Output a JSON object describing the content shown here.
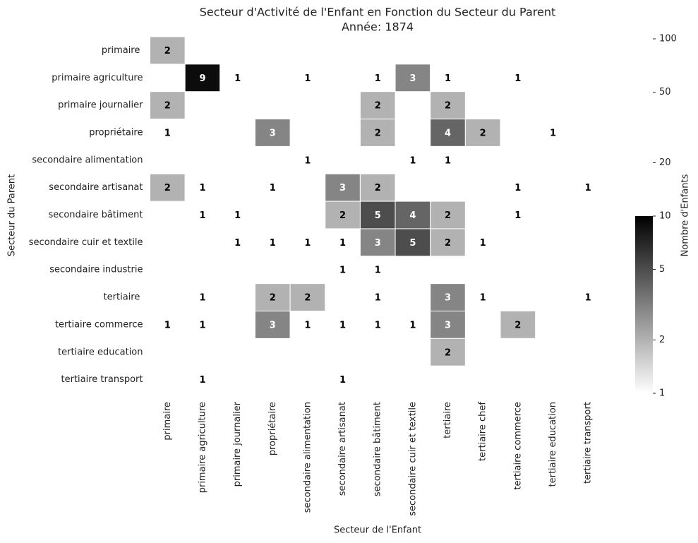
{
  "chart_data": {
    "type": "heatmap",
    "title": "Secteur d'Activité de l'Enfant en Fonction du Secteur du Parent",
    "subtitle": "Année: 1874",
    "x_label": "Secteur de l'Enfant",
    "y_label": "Secteur du Parent",
    "colorbar_label": "Nombre d'Enfants",
    "colormap": "gray_r",
    "log_scale": true,
    "color_range": [
      1,
      10
    ],
    "clim": [
      1,
      100
    ],
    "cticks": [
      1,
      2,
      5,
      10,
      20,
      50,
      100
    ],
    "columns": [
      "primaire",
      "primaire agriculture",
      "primaire journalier",
      "propriétaire",
      "secondaire alimentation",
      "secondaire artisanat",
      "secondaire bâtiment",
      "secondaire cuir et textile",
      "tertiaire",
      "tertiaire chef",
      "tertiaire commerce",
      "tertiaire education",
      "tertiaire transport"
    ],
    "rows": [
      "primaire ",
      "primaire agriculture",
      "primaire journalier",
      "propriétaire",
      "secondaire alimentation",
      "secondaire artisanat",
      "secondaire bâtiment",
      "secondaire cuir et textile",
      "secondaire industrie",
      "tertiaire ",
      "tertiaire commerce",
      "tertiaire education",
      "tertiaire transport"
    ],
    "values": [
      [
        2,
        null,
        null,
        null,
        null,
        null,
        null,
        null,
        null,
        null,
        null,
        null,
        null
      ],
      [
        null,
        9,
        1,
        null,
        1,
        null,
        1,
        3,
        1,
        null,
        1,
        null,
        null
      ],
      [
        2,
        null,
        null,
        null,
        null,
        null,
        2,
        null,
        2,
        null,
        null,
        null,
        null
      ],
      [
        1,
        null,
        null,
        3,
        null,
        null,
        2,
        null,
        4,
        2,
        null,
        1,
        null
      ],
      [
        null,
        null,
        null,
        null,
        1,
        null,
        null,
        1,
        1,
        null,
        null,
        null,
        null
      ],
      [
        2,
        1,
        null,
        1,
        null,
        3,
        2,
        null,
        null,
        null,
        1,
        null,
        1
      ],
      [
        null,
        1,
        1,
        null,
        null,
        2,
        5,
        4,
        2,
        null,
        1,
        null,
        null
      ],
      [
        null,
        null,
        1,
        1,
        1,
        1,
        3,
        5,
        2,
        1,
        null,
        null,
        null
      ],
      [
        null,
        null,
        null,
        null,
        null,
        1,
        1,
        null,
        null,
        null,
        null,
        null,
        null
      ],
      [
        null,
        1,
        null,
        2,
        2,
        null,
        1,
        null,
        3,
        1,
        null,
        null,
        1
      ],
      [
        1,
        1,
        null,
        3,
        1,
        1,
        1,
        1,
        3,
        null,
        2,
        null,
        null
      ],
      [
        null,
        null,
        null,
        null,
        null,
        null,
        null,
        null,
        2,
        null,
        null,
        null,
        null
      ],
      [
        null,
        1,
        null,
        null,
        null,
        1,
        null,
        null,
        null,
        null,
        null,
        null,
        null
      ]
    ]
  }
}
